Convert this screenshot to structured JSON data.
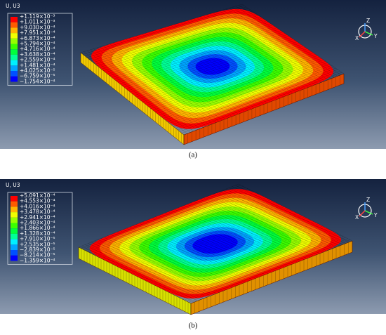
{
  "panels": [
    {
      "caption": "(a)",
      "legend_title": "U, U3",
      "legend_labels": [
        "+1.119×10⁻³",
        "+1.011×10⁻³",
        "+9.030×10⁻⁴",
        "+7.951×10⁻⁴",
        "+6.873×10⁻⁴",
        "+5.794×10⁻⁴",
        "+4.716×10⁻⁴",
        "+3.638×10⁻⁴",
        "+2.559×10⁻⁴",
        "+1.481×10⁻⁴",
        "+4.025×10⁻⁵",
        "−6.759×10⁻⁵",
        "−1.754×10⁻⁴"
      ],
      "triad": [
        "Z",
        "Y",
        "X"
      ]
    },
    {
      "caption": "(b)",
      "legend_title": "U, U3",
      "legend_labels": [
        "+5.091×10⁻⁴",
        "+4.553×10⁻⁴",
        "+4.016×10⁻⁴",
        "+3.478×10⁻⁴",
        "+2.941×10⁻⁴",
        "+2.403×10⁻⁴",
        "+1.866×10⁻⁴",
        "+1.328×10⁻⁴",
        "+7.910×10⁻⁵",
        "+2.535×10⁻⁵",
        "−2.839×10⁻⁵",
        "−8.214×10⁻⁵",
        "−1.359×10⁻⁴"
      ],
      "triad": [
        "Z",
        "Y",
        "X"
      ]
    }
  ]
}
